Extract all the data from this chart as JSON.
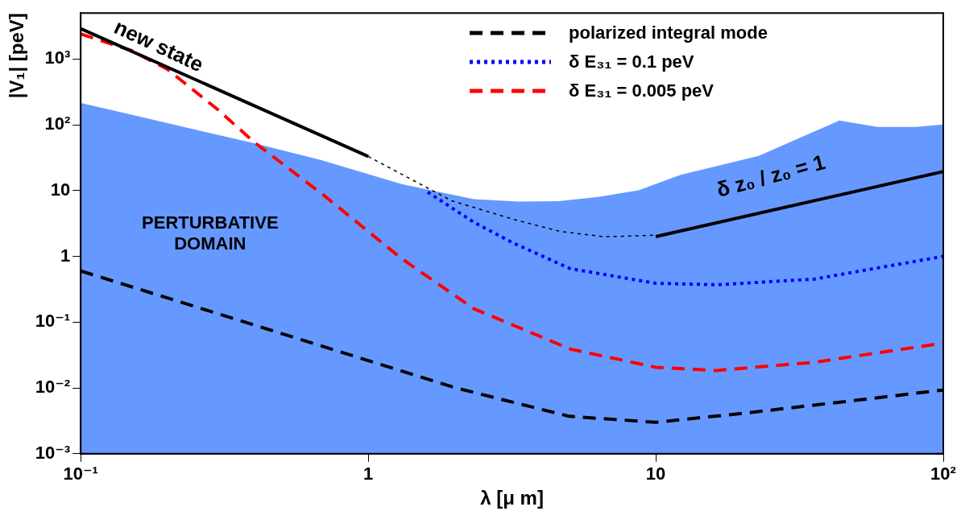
{
  "chart_data": {
    "type": "line",
    "xlabel": "λ [μ m]",
    "ylabel": "|V₁| [peV]",
    "log": "xy",
    "xlim": [
      0.1,
      100
    ],
    "ylim": [
      0.001,
      5000
    ],
    "xticks": [
      {
        "value": 0.1,
        "label": "10⁻¹"
      },
      1,
      10,
      {
        "value": 100,
        "label": "10²"
      }
    ],
    "yticks": [
      {
        "value": 0.001,
        "label": "10⁻³"
      },
      {
        "value": 0.01,
        "label": "10⁻²"
      },
      {
        "value": 0.1,
        "label": "10⁻¹"
      },
      1,
      10,
      {
        "value": 100,
        "label": "10²"
      },
      {
        "value": 1000,
        "label": "10³"
      }
    ],
    "grid": false,
    "legend": "top right",
    "marker": "none",
    "annotations": [
      "new state",
      "δ z₀ / z₀ = 1",
      "PERTURBATIVE DOMAIN"
    ],
    "series": [
      {
        "type": "area",
        "color": "#6699ff",
        "x": [
          0.1,
          0.129,
          0.404,
          0.687,
          1.3,
          2.33,
          3.34,
          4.59,
          6.3,
          8.71,
          12.2,
          22.8,
          43.5,
          59,
          80,
          100
        ],
        "values": [
          214,
          166,
          52,
          29,
          12.6,
          7.4,
          6.8,
          6.9,
          8.0,
          10.1,
          17.4,
          33.7,
          116,
          93,
          93,
          101
        ]
      },
      {
        "type": "line",
        "color": "#000000",
        "line_style": "solid",
        "x": [
          0.1,
          1
        ],
        "values": [
          2900,
          33
        ]
      },
      {
        "type": "line",
        "color": "#000000",
        "line_style": "dotted",
        "x": [
          1,
          1.95,
          3.24,
          4.65,
          6.64,
          10
        ],
        "values": [
          33,
          7.0,
          3.6,
          2.4,
          1.98,
          2.1
        ]
      },
      {
        "type": "line",
        "color": "#000000",
        "line_style": "solid",
        "x": [
          10,
          100
        ],
        "values": [
          2.0,
          19.5
        ]
      },
      {
        "name": "polarized integral mode",
        "type": "line",
        "color": "#000000",
        "line_style": "dashed",
        "x": [
          0.1,
          1,
          2,
          5,
          10,
          20,
          50,
          100
        ],
        "values": [
          0.6,
          0.026,
          0.0101,
          0.0037,
          0.003,
          0.0041,
          0.0065,
          0.0093
        ]
      },
      {
        "name": "δ E₃₁ = 0.1 peV",
        "type": "line",
        "color": "#0000ff",
        "line_style": "dotted",
        "x": [
          1.61,
          2.33,
          3.19,
          5.04,
          10,
          16.2,
          35.5,
          100
        ],
        "values": [
          9.5,
          3.3,
          1.6,
          0.65,
          0.39,
          0.37,
          0.45,
          1.0
        ]
      },
      {
        "name": "δ E₃₁ = 0.005 peV",
        "type": "line",
        "color": "#ff0000",
        "line_style": "dashed",
        "x": [
          0.1,
          0.15,
          0.2,
          0.3,
          0.4,
          0.7,
          1.3,
          2.33,
          5.04,
          10,
          16.2,
          35.5,
          100
        ],
        "values": [
          2400,
          1350,
          700,
          170,
          55,
          8.5,
          0.94,
          0.16,
          0.039,
          0.0206,
          0.0184,
          0.0245,
          0.048
        ]
      }
    ]
  }
}
